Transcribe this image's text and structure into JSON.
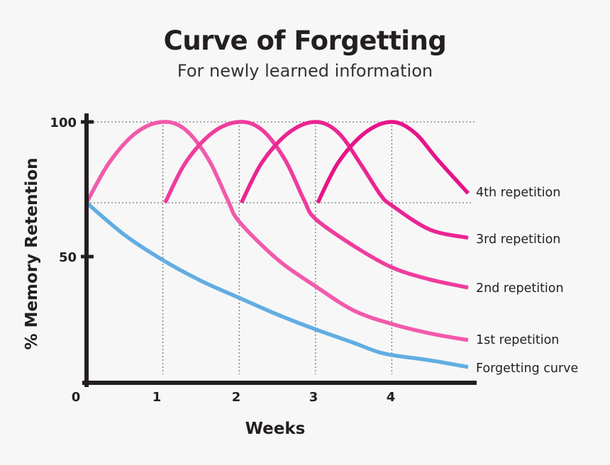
{
  "chart_data": {
    "type": "line",
    "title": "Curve of Forgetting",
    "subtitle": "For newly learned information",
    "xlabel": "Weeks",
    "ylabel": "% Memory Retention",
    "x_ticks": [
      "0",
      "1",
      "2",
      "3",
      "4"
    ],
    "y_ticks": [
      "50",
      "100"
    ],
    "xlim": [
      0,
      5
    ],
    "ylim": [
      0,
      103
    ],
    "grid": "dotted guides at 70 and 100 and at weeks 1-4",
    "legend": "labels at line ends (right)",
    "series": [
      {
        "name": "Forgetting curve",
        "color": "#62ade3",
        "points": [
          [
            0,
            70
          ],
          [
            0.5,
            58
          ],
          [
            1,
            48.7
          ],
          [
            1.5,
            41
          ],
          [
            2,
            34.7
          ],
          [
            2.5,
            28.5
          ],
          [
            3,
            23
          ],
          [
            3.5,
            18
          ],
          [
            3.9,
            14
          ],
          [
            4.5,
            11.5
          ],
          [
            5,
            9
          ]
        ]
      },
      {
        "name": "1st repetition",
        "color": "#f15aab",
        "points": [
          [
            0,
            70
          ],
          [
            0.3,
            85
          ],
          [
            0.65,
            96
          ],
          [
            1,
            100
          ],
          [
            1.3,
            97
          ],
          [
            1.6,
            86
          ],
          [
            1.85,
            71
          ],
          [
            2,
            63
          ],
          [
            2.5,
            49
          ],
          [
            3,
            39
          ],
          [
            3.5,
            30
          ],
          [
            4,
            25
          ],
          [
            4.5,
            21.5
          ],
          [
            5,
            19
          ]
        ]
      },
      {
        "name": "2nd repetition",
        "color": "#ee3d9d",
        "points": [
          [
            1.03,
            70
          ],
          [
            1.3,
            85
          ],
          [
            1.65,
            96
          ],
          [
            2,
            100
          ],
          [
            2.3,
            97
          ],
          [
            2.6,
            86
          ],
          [
            2.85,
            71
          ],
          [
            3,
            64
          ],
          [
            3.5,
            54
          ],
          [
            4,
            46
          ],
          [
            4.5,
            41.5
          ],
          [
            5,
            38.5
          ]
        ]
      },
      {
        "name": "3rd repetition",
        "color": "#ea2592",
        "points": [
          [
            2.03,
            70
          ],
          [
            2.3,
            85
          ],
          [
            2.65,
            96
          ],
          [
            3,
            100
          ],
          [
            3.3,
            96
          ],
          [
            3.6,
            84
          ],
          [
            3.85,
            73
          ],
          [
            4,
            69
          ],
          [
            4.5,
            60
          ],
          [
            5,
            57
          ]
        ]
      },
      {
        "name": "4th repetition",
        "color": "#e6148a",
        "points": [
          [
            3.03,
            70
          ],
          [
            3.3,
            85
          ],
          [
            3.65,
            96
          ],
          [
            4,
            100
          ],
          [
            4.3,
            96
          ],
          [
            4.6,
            86
          ],
          [
            5,
            73.5
          ]
        ]
      }
    ]
  }
}
